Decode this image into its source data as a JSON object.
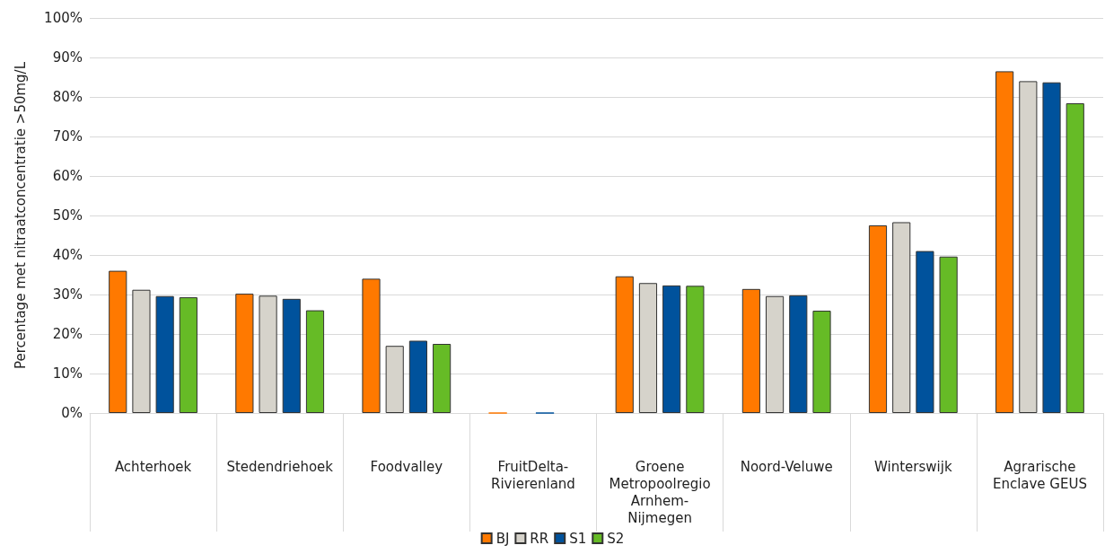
{
  "chart_data": {
    "type": "bar",
    "ylabel": "Percentage met nitraatconcentratie >50mg/L",
    "categories": [
      "Achterhoek",
      "Stedendriehoek",
      "Foodvalley",
      "FruitDelta-\nRivierenland",
      "Groene\nMetropoolregio\nArnhem-\nNijmegen",
      "Noord-Veluwe",
      "Winterswijk",
      "Agrarische\nEnclave GEUS"
    ],
    "series": [
      {
        "name": "BJ",
        "color": "#ff7900",
        "values": [
          36.0,
          30.2,
          34.0,
          0,
          34.6,
          31.4,
          47.5,
          86.5
        ]
      },
      {
        "name": "RR",
        "color": "#d6d3cb",
        "values": [
          31.2,
          29.7,
          17.0,
          null,
          32.9,
          29.6,
          48.3,
          84.0
        ]
      },
      {
        "name": "S1",
        "color": "#00529c",
        "values": [
          29.6,
          28.9,
          18.3,
          0,
          32.3,
          29.8,
          41.0,
          83.7
        ]
      },
      {
        "name": "S2",
        "color": "#66bb26",
        "values": [
          29.3,
          26.0,
          17.5,
          null,
          32.2,
          25.9,
          39.6,
          78.4
        ]
      }
    ],
    "ylim": [
      0,
      100
    ],
    "yticks": [
      {
        "value": 0,
        "label": "0%"
      },
      {
        "value": 10,
        "label": "10%"
      },
      {
        "value": 20,
        "label": "20%"
      },
      {
        "value": 30,
        "label": "30%"
      },
      {
        "value": 40,
        "label": "40%"
      },
      {
        "value": 50,
        "label": "50%"
      },
      {
        "value": 60,
        "label": "60%"
      },
      {
        "value": 70,
        "label": "70%"
      },
      {
        "value": 80,
        "label": "80%"
      },
      {
        "value": 90,
        "label": "90%"
      },
      {
        "value": 100,
        "label": "100%"
      }
    ],
    "grid": "y",
    "legend": "bottom"
  }
}
